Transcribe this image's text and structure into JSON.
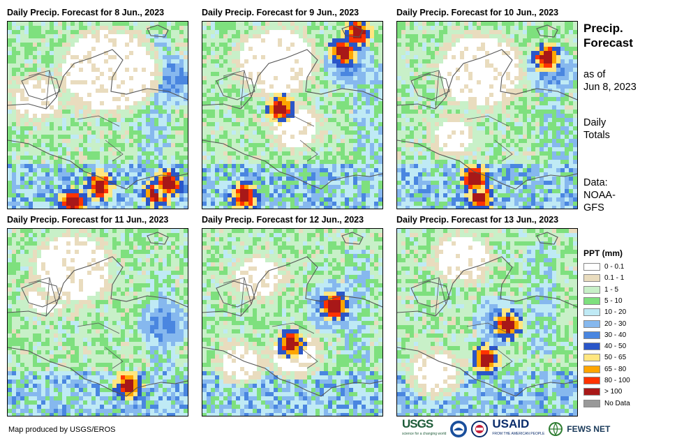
{
  "panels": [
    {
      "title": "Daily Precip. Forecast for 8 Jun., 2023"
    },
    {
      "title": "Daily Precip. Forecast for 9 Jun., 2023"
    },
    {
      "title": "Daily Precip. Forecast for 10 Jun., 2023"
    },
    {
      "title": "Daily Precip. Forecast for 11 Jun., 2023"
    },
    {
      "title": "Daily Precip. Forecast for 12 Jun., 2023"
    },
    {
      "title": "Daily Precip. Forecast for 13 Jun., 2023"
    }
  ],
  "side": {
    "title_line1": "Precip.",
    "title_line2": "Forecast",
    "asof_line1": "as of",
    "asof_line2": "Jun 8, 2023",
    "totals_line1": "Daily",
    "totals_line2": "Totals",
    "data_line1": "Data:",
    "data_line2": "NOAA-",
    "data_line3": "GFS"
  },
  "legend": {
    "title": "PPT (mm)",
    "items": [
      {
        "label": "0 - 0.1",
        "color": "#ffffff"
      },
      {
        "label": "0.1 - 1",
        "color": "#e9dcbe"
      },
      {
        "label": "1 - 5",
        "color": "#c8f0c8"
      },
      {
        "label": "5 - 10",
        "color": "#7ee07e"
      },
      {
        "label": "10 - 20",
        "color": "#bfeaf5"
      },
      {
        "label": "20 - 30",
        "color": "#86b8ee"
      },
      {
        "label": "30 - 40",
        "color": "#4a86e0"
      },
      {
        "label": "40 - 50",
        "color": "#2a56c8"
      },
      {
        "label": "50 - 65",
        "color": "#ffe680"
      },
      {
        "label": "65 - 80",
        "color": "#ffa500"
      },
      {
        "label": "80 - 100",
        "color": "#ff3300"
      },
      {
        "label": "> 100",
        "color": "#a81818"
      },
      {
        "label": "No Data",
        "color": "#999999"
      }
    ]
  },
  "footer": {
    "credit": "Map produced by USGS/EROS",
    "logo_usgs": "USGS",
    "logo_usgs_tagline": "science for a changing world",
    "logo_usaid": "USAID",
    "logo_usaid_tagline": "FROM THE AMERICAN PEOPLE",
    "logo_fews": "FEWS NET"
  }
}
